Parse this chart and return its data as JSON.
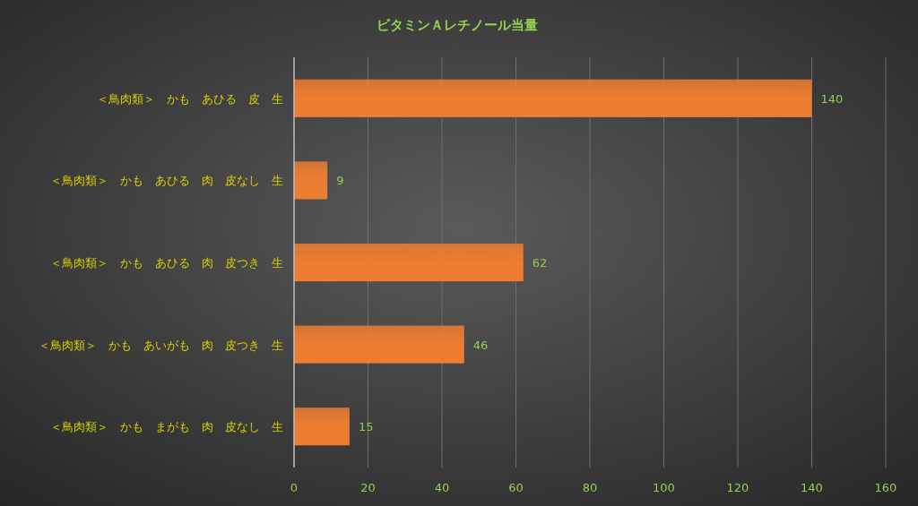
{
  "chart_data": {
    "type": "bar",
    "orientation": "horizontal",
    "title": "ビタミンＡレチノール当量",
    "categories": [
      "＜鳥肉類＞　かも　あひる　皮　生",
      "＜鳥肉類＞　かも　あひる　肉　皮なし　生",
      "＜鳥肉類＞　かも　あひる　肉　皮つき　生",
      "＜鳥肉類＞　かも　あいがも　肉　皮つき　生",
      "＜鳥肉類＞　かも　まがも　肉　皮なし　生"
    ],
    "values": [
      140,
      9,
      62,
      46,
      15
    ],
    "color": "#ed7d31",
    "xlim": [
      0,
      160
    ],
    "xticks": [
      0,
      20,
      40,
      60,
      80,
      100,
      120,
      140,
      160
    ],
    "grid": "x",
    "data_labels": true
  }
}
